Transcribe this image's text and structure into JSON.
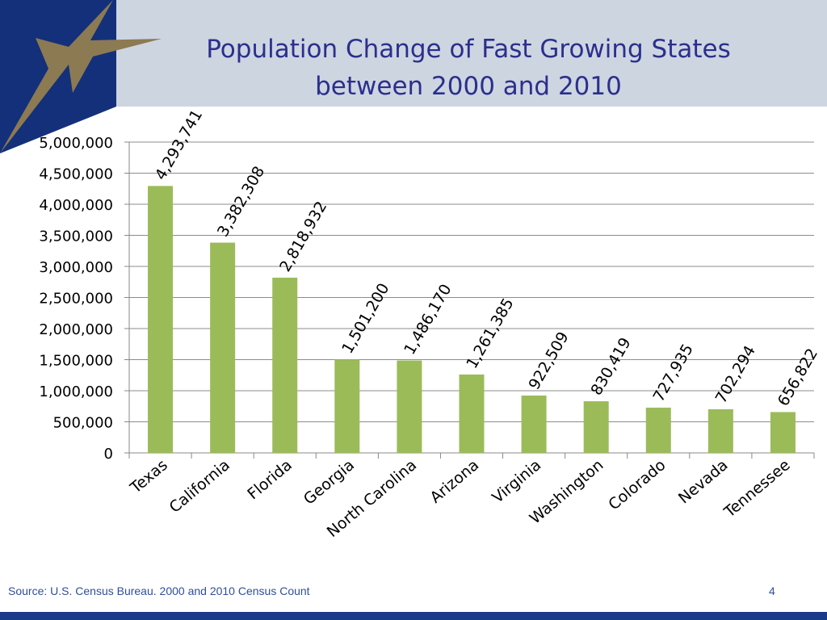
{
  "slide": {
    "title_line1": "Population Change of Fast Growing States",
    "title_line2": "between 2000 and 2010",
    "source": "Source: U.S. Census Bureau. 2000 and 2010 Census Count",
    "page_number": "4"
  },
  "colors": {
    "bar": "#9bbb59",
    "title": "#2b2f8c",
    "header_band": "#cdd5e1",
    "logo_blue": "#14307a",
    "logo_star": "#8c7a52",
    "footer": "#1b3a8a"
  },
  "chart_data": {
    "type": "bar",
    "title": "Population Change of Fast Growing States between 2000 and 2010",
    "xlabel": "",
    "ylabel": "",
    "categories": [
      "Texas",
      "California",
      "Florida",
      "Georgia",
      "North Carolina",
      "Arizona",
      "Virginia",
      "Washington",
      "Colorado",
      "Nevada",
      "Tennessee"
    ],
    "values": [
      4293741,
      3382308,
      2818932,
      1501200,
      1486170,
      1261385,
      922509,
      830419,
      727935,
      702294,
      656822
    ],
    "data_labels": [
      "4,293,741",
      "3,382,308",
      "2,818,932",
      "1,501,200",
      "1,486,170",
      "1,261,385",
      "922,509",
      "830,419",
      "727,935",
      "702,294",
      "656,822"
    ],
    "yticks": [
      0,
      500000,
      1000000,
      1500000,
      2000000,
      2500000,
      3000000,
      3500000,
      4000000,
      4500000,
      5000000
    ],
    "ytick_labels": [
      "0",
      "500,000",
      "1,000,000",
      "1,500,000",
      "2,000,000",
      "2,500,000",
      "3,000,000",
      "3,500,000",
      "4,000,000",
      "4,500,000",
      "5,000,000"
    ],
    "ylim": [
      0,
      5000000
    ],
    "grid": true,
    "legend": "none"
  }
}
